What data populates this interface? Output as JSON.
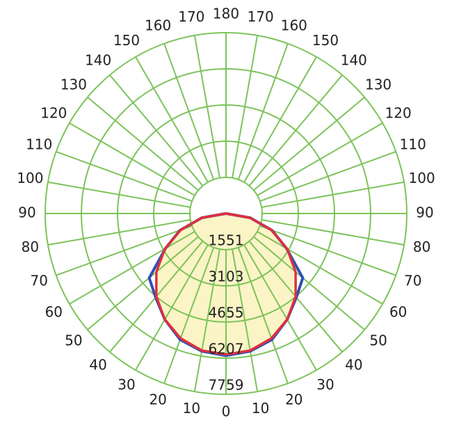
{
  "chart_data": {
    "type": "polar",
    "angles": [
      0,
      10,
      20,
      30,
      40,
      50,
      60,
      70,
      80,
      90
    ],
    "angle_ticks": [
      0,
      10,
      20,
      30,
      40,
      50,
      60,
      70,
      80,
      90,
      100,
      110,
      120,
      130,
      140,
      150,
      160,
      170,
      180
    ],
    "rlim": [
      0,
      7759
    ],
    "rticks": [
      1551,
      3103,
      4655,
      6207,
      7759
    ],
    "grid_color": "#7cc35a",
    "fill_color": "#fbf4c6",
    "series": [
      {
        "color": "#2f4fb5",
        "values": [
          6100,
          6000,
          5760,
          5250,
          4700,
          4300,
          3000,
          2100,
          1050,
          0
        ]
      },
      {
        "color": "#e0303c",
        "values": [
          6050,
          5970,
          5700,
          5250,
          4650,
          3900,
          3030,
          2070,
          1050,
          0
        ]
      }
    ]
  }
}
